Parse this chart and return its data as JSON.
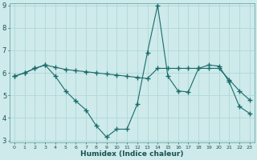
{
  "xlabel": "Humidex (Indice chaleur)",
  "background_color": "#ceeaea",
  "grid_color": "#b0d8d8",
  "line_color": "#1a6b6b",
  "x_min": 0,
  "x_max": 23,
  "y_min": 3,
  "y_max": 9,
  "line1_x": [
    0,
    1,
    2,
    3,
    4,
    5,
    6,
    7,
    8,
    9,
    10,
    11,
    12,
    13,
    14,
    15,
    16,
    17,
    18,
    19,
    20,
    21,
    22,
    23
  ],
  "line1_y": [
    5.85,
    6.0,
    6.2,
    6.35,
    6.25,
    6.15,
    6.1,
    6.05,
    6.0,
    5.95,
    5.9,
    5.85,
    5.8,
    5.75,
    6.2,
    6.2,
    6.2,
    6.2,
    6.2,
    6.2,
    6.2,
    5.7,
    5.2,
    4.8
  ],
  "line2_x": [
    0,
    1,
    2,
    3,
    4,
    5,
    6,
    7,
    8,
    9,
    10,
    11,
    12,
    13,
    14,
    15,
    16,
    17,
    18,
    19,
    20,
    21,
    22,
    23
  ],
  "line2_y": [
    5.85,
    6.0,
    6.2,
    6.35,
    5.85,
    5.2,
    4.75,
    4.35,
    3.65,
    3.15,
    3.5,
    3.5,
    4.6,
    6.9,
    9.0,
    5.85,
    5.2,
    5.15,
    6.2,
    6.35,
    6.3,
    5.6,
    4.5,
    4.2
  ]
}
